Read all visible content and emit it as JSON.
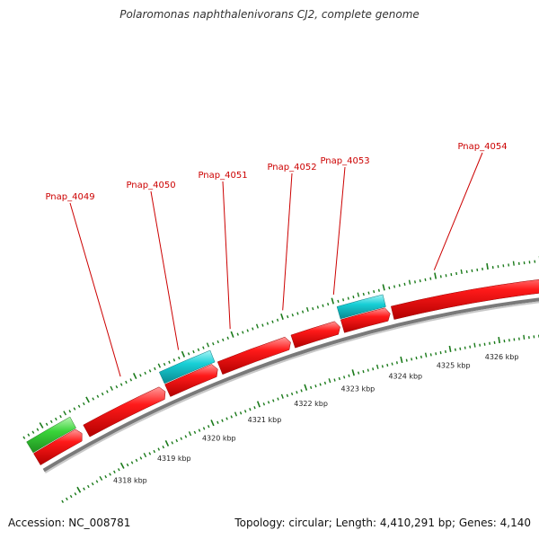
{
  "title": "Polaromonas naphthalenivorans CJ2, complete genome",
  "footer": {
    "accession": "Accession: NC_008781",
    "topology": "Topology: circular; Length: 4,410,291 bp; Genes: 4,140"
  },
  "colors": {
    "forward_gene": "#e8000b",
    "reverse_gene_rna": "#00c8d0",
    "other_feature": "#33cc33",
    "backbone": "#888888",
    "tick": "#1a7a1a",
    "label": "#cc0000"
  },
  "scale": {
    "unit": "kbp",
    "labels": [
      "4318 kbp",
      "4319 kbp",
      "4320 kbp",
      "4321 kbp",
      "4322 kbp",
      "4323 kbp",
      "4324 kbp",
      "4325 kbp",
      "4326 kbp"
    ]
  },
  "gene_labels": [
    "Pnap_4049",
    "Pnap_4050",
    "Pnap_4051",
    "Pnap_4052",
    "Pnap_4053",
    "Pnap_4054"
  ]
}
